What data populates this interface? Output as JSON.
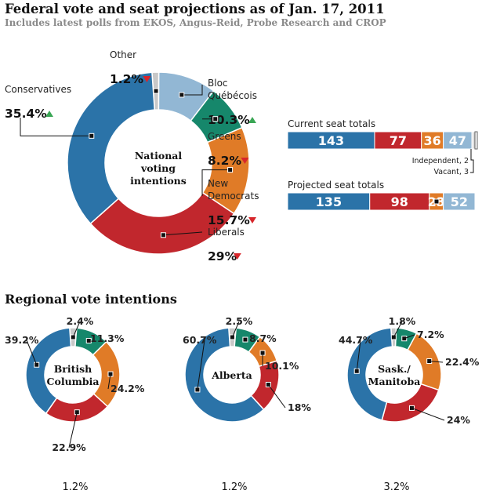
{
  "title": "Federal vote and seat projections as of Jan. 17, 2011",
  "subtitle": "Includes latest polls from EKOS, Angus-Reid, Probe Research and CROP",
  "colors": {
    "Conservatives": "#2b73a8",
    "Liberals": "#c1272d",
    "New Democrats": "#e07b27",
    "Greens": "#16876b",
    "Bloc Québécois": "#92b7d4",
    "Other": "#c8c8c8"
  },
  "chart_data": [
    {
      "type": "pie",
      "donut": true,
      "center_label": [
        "National",
        "voting",
        "intentions"
      ],
      "slices": [
        {
          "name": "Other",
          "label_lines": [
            "Other"
          ],
          "value": 1.2,
          "value_label": "1.2%",
          "trend": "down"
        },
        {
          "name": "Bloc Québécois",
          "label_lines": [
            "Bloc",
            "Québécois"
          ],
          "value": 10.3,
          "value_label": "10.3%",
          "trend": "up"
        },
        {
          "name": "Greens",
          "label_lines": [
            "Greens"
          ],
          "value": 8.2,
          "value_label": "8.2%",
          "trend": "down"
        },
        {
          "name": "New Democrats",
          "label_lines": [
            "New",
            "Democrats"
          ],
          "value": 15.7,
          "value_label": "15.7%",
          "trend": "down"
        },
        {
          "name": "Liberals",
          "label_lines": [
            "Liberals"
          ],
          "value": 29,
          "value_label": "29%",
          "trend": "down"
        },
        {
          "name": "Conservatives",
          "label_lines": [
            "Conservatives"
          ],
          "value": 35.4,
          "value_label": "35.4%",
          "trend": "up"
        }
      ]
    },
    {
      "type": "bar",
      "stacked": true,
      "orientation": "horizontal",
      "title": "Current seat totals",
      "series": [
        {
          "name": "Conservatives",
          "value": 143,
          "label": "143"
        },
        {
          "name": "Liberals",
          "value": 77,
          "label": "77"
        },
        {
          "name": "New Democrats",
          "value": 36,
          "label": "36"
        },
        {
          "name": "Bloc Québécois",
          "value": 47,
          "label": "47"
        },
        {
          "name": "Independent",
          "value": 2,
          "label": ""
        },
        {
          "name": "Vacant",
          "value": 3,
          "label": ""
        }
      ],
      "notes": [
        "Independent, 2",
        "Vacant, 3"
      ]
    },
    {
      "type": "bar",
      "stacked": true,
      "orientation": "horizontal",
      "title": "Projected seat totals",
      "series": [
        {
          "name": "Conservatives",
          "value": 135,
          "label": "135"
        },
        {
          "name": "Liberals",
          "value": 98,
          "label": "98"
        },
        {
          "name": "New Democrats",
          "value": 23,
          "label": "23"
        },
        {
          "name": "Bloc Québécois",
          "value": 52,
          "label": "52"
        }
      ]
    },
    {
      "type": "pie",
      "donut": true,
      "center_label": [
        "British",
        "Columbia"
      ],
      "slices": [
        {
          "name": "Other",
          "value": 2.4,
          "value_label": "2.4%"
        },
        {
          "name": "Greens",
          "value": 11.3,
          "value_label": "11.3%"
        },
        {
          "name": "New Democrats",
          "value": 24.2,
          "value_label": "24.2%"
        },
        {
          "name": "Liberals",
          "value": 22.9,
          "value_label": "22.9%"
        },
        {
          "name": "Conservatives",
          "value": 39.2,
          "value_label": "39.2%"
        }
      ],
      "footnote": "1.2%"
    },
    {
      "type": "pie",
      "donut": true,
      "center_label": [
        "Alberta"
      ],
      "slices": [
        {
          "name": "Other",
          "value": 2.5,
          "value_label": "2.5%"
        },
        {
          "name": "Greens",
          "value": 8.7,
          "value_label": "8.7%"
        },
        {
          "name": "New Democrats",
          "value": 10.1,
          "value_label": "10.1%"
        },
        {
          "name": "Liberals",
          "value": 18,
          "value_label": "18%"
        },
        {
          "name": "Conservatives",
          "value": 60.7,
          "value_label": "60.7%"
        }
      ],
      "footnote": "1.2%"
    },
    {
      "type": "pie",
      "donut": true,
      "center_label": [
        "Sask./",
        "Manitoba"
      ],
      "slices": [
        {
          "name": "Other",
          "value": 1.8,
          "value_label": "1.8%"
        },
        {
          "name": "Greens",
          "value": 7.2,
          "value_label": "7.2%"
        },
        {
          "name": "New Democrats",
          "value": 22.4,
          "value_label": "22.4%"
        },
        {
          "name": "Liberals",
          "value": 24,
          "value_label": "24%"
        },
        {
          "name": "Conservatives",
          "value": 44.7,
          "value_label": "44.7%"
        }
      ],
      "footnote": "3.2%"
    }
  ],
  "regional_title": "Regional vote intentions"
}
